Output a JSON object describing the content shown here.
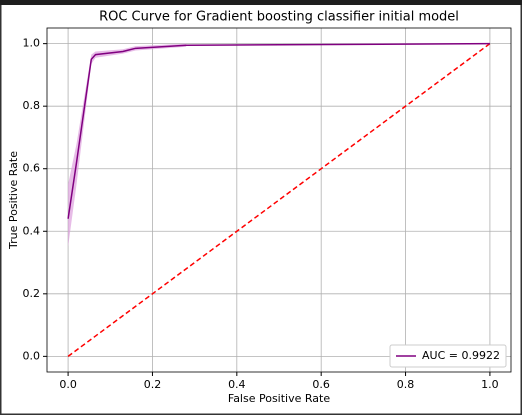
{
  "chart_data": {
    "type": "line",
    "title": "ROC Curve for Gradient boosting classifier initial model",
    "xlabel": "False Positive Rate",
    "ylabel": "True Positive Rate",
    "xlim": [
      -0.05,
      1.05
    ],
    "ylim": [
      -0.05,
      1.05
    ],
    "xticks": [
      {
        "value": 0,
        "label": "0.0"
      },
      0.2,
      0.4,
      0.6,
      0.8,
      {
        "value": 1,
        "label": "1.0"
      }
    ],
    "yticks": [
      {
        "value": 0,
        "label": "0.0"
      },
      0.2,
      0.4,
      0.6,
      0.8,
      {
        "value": 1,
        "label": "1.0"
      }
    ],
    "grid": true,
    "legend": "lower right",
    "band": {
      "color": "#dda0dd",
      "x": [
        0,
        0.02,
        0.055,
        0.065,
        0.13,
        0.16,
        0.28
      ],
      "lower": [
        0.35,
        0.55,
        0.935,
        0.955,
        0.968,
        0.978,
        0.99
      ],
      "upper": [
        0.55,
        0.68,
        0.965,
        0.975,
        0.982,
        0.992,
        1.0
      ]
    },
    "series": [
      {
        "name": "AUC = 0.9922",
        "color": "#800080",
        "dash": false,
        "x": [
          0,
          0.02,
          0.055,
          0.065,
          0.13,
          0.16,
          0.28,
          1
        ],
        "values": [
          0.44,
          0.62,
          0.95,
          0.965,
          0.975,
          0.985,
          0.995,
          1
        ]
      },
      {
        "color": "#ff0000",
        "dash": true,
        "x": [
          0,
          1
        ],
        "values": [
          0,
          1
        ]
      }
    ]
  }
}
